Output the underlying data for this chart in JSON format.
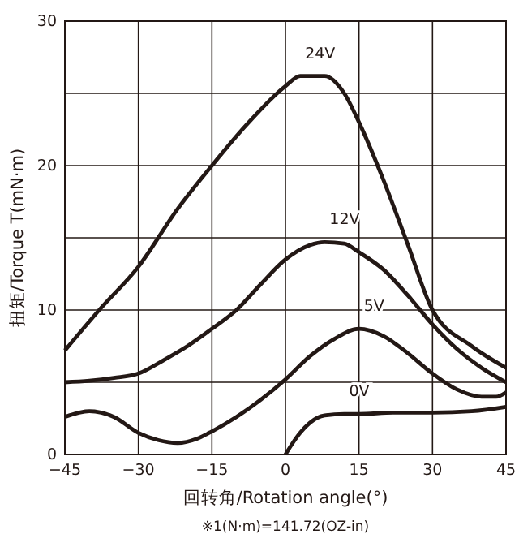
{
  "chart_data": {
    "type": "line",
    "xlabel": "回转角/Rotation angle(°)",
    "ylabel": "扭矩/Torque T(mN·m)",
    "annotations": [
      "※1(N·m)=141.72(OZ-in)"
    ],
    "xlim": [
      -45,
      45
    ],
    "xticks": [
      -45,
      -30,
      -15,
      0,
      15,
      30,
      45
    ],
    "ylim": [
      0,
      30
    ],
    "yticks": [
      0,
      {
        "value": 5,
        "label": null
      },
      10,
      {
        "value": 15,
        "label": null
      },
      20,
      {
        "value": 25,
        "label": null
      },
      30
    ],
    "grid": true,
    "line_style": "solid",
    "marker": "none",
    "series": [
      {
        "name": "24V",
        "color": "#231815",
        "x": [
          -45,
          -38,
          -30,
          -22,
          -15,
          -8,
          0,
          3,
          8,
          12,
          15,
          20,
          25,
          30,
          38,
          45
        ],
        "values": [
          7.2,
          10,
          13,
          17,
          20,
          22.8,
          25.5,
          26.2,
          26.2,
          25,
          23,
          19,
          14.5,
          10,
          7.5,
          6
        ]
      },
      {
        "name": "12V",
        "color": "#231815",
        "x": [
          -45,
          -40,
          -35,
          -30,
          -25,
          -20,
          -15,
          -10,
          -5,
          0,
          5,
          8,
          12,
          15,
          20,
          25,
          30,
          35,
          40,
          45
        ],
        "values": [
          5,
          5.1,
          5.3,
          5.6,
          6.5,
          7.5,
          8.7,
          10,
          11.8,
          13.5,
          14.5,
          14.7,
          14.6,
          14,
          12.8,
          11,
          9,
          7.3,
          6,
          5
        ]
      },
      {
        "name": "5V",
        "color": "#231815",
        "x": [
          -45,
          -40,
          -35,
          -30,
          -26,
          -22,
          -18,
          -15,
          -10,
          -5,
          0,
          5,
          10,
          15,
          20,
          25,
          30,
          35,
          40,
          43,
          45
        ],
        "values": [
          2.6,
          3,
          2.6,
          1.5,
          1,
          0.8,
          1.1,
          1.6,
          2.6,
          3.8,
          5.2,
          6.8,
          8,
          8.7,
          8.2,
          7,
          5.6,
          4.5,
          4,
          4,
          4.3
        ]
      },
      {
        "name": "0V",
        "color": "#231815",
        "x": [
          0,
          1.5,
          3,
          5,
          8,
          12,
          15,
          22,
          30,
          38,
          45
        ],
        "values": [
          0,
          0.8,
          1.5,
          2.2,
          2.7,
          2.8,
          2.8,
          2.9,
          2.9,
          3,
          3.3
        ]
      }
    ]
  }
}
